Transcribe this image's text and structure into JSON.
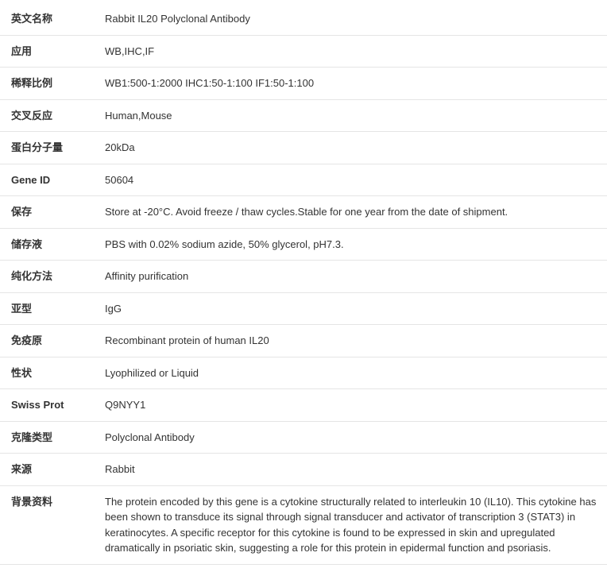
{
  "rows": [
    {
      "label": "英文名称",
      "value": "Rabbit IL20 Polyclonal Antibody"
    },
    {
      "label": "应用",
      "value": "WB,IHC,IF"
    },
    {
      "label": "稀释比例",
      "value": "WB1:500-1:2000 IHC1:50-1:100 IF1:50-1:100"
    },
    {
      "label": "交叉反应",
      "value": "Human,Mouse"
    },
    {
      "label": "蛋白分子量",
      "value": "20kDa"
    },
    {
      "label": "Gene ID",
      "value": "50604"
    },
    {
      "label": "保存",
      "value": "Store at -20°C. Avoid freeze / thaw cycles.Stable for one year from the date of shipment."
    },
    {
      "label": "储存液",
      "value": "PBS with 0.02% sodium azide, 50% glycerol, pH7.3."
    },
    {
      "label": "纯化方法",
      "value": "Affinity purification"
    },
    {
      "label": "亚型",
      "value": "IgG"
    },
    {
      "label": "免疫原",
      "value": "Recombinant protein of human IL20"
    },
    {
      "label": "性状",
      "value": "Lyophilized or Liquid"
    },
    {
      "label": "Swiss Prot",
      "value": "Q9NYY1"
    },
    {
      "label": "克隆类型",
      "value": "Polyclonal Antibody"
    },
    {
      "label": "来源",
      "value": "Rabbit"
    },
    {
      "label": "背景资料",
      "value": "The protein encoded by this gene is a cytokine structurally related to interleukin 10 (IL10). This cytokine has been shown to transduce its signal through signal transducer and activator of transcription 3 (STAT3) in keratinocytes. A specific receptor for this cytokine is found to be expressed in skin and upregulated dramatically in psoriatic skin, suggesting a role for this protein in epidermal function and psoriasis."
    }
  ]
}
